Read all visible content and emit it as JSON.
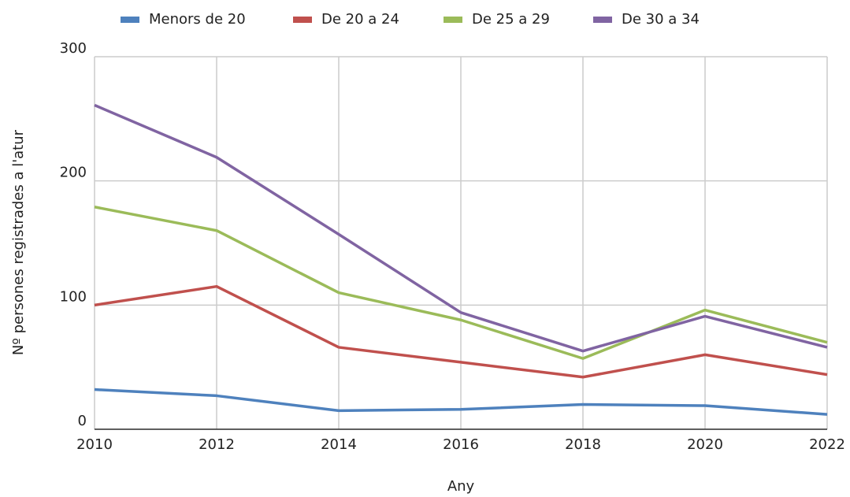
{
  "chart_data": {
    "type": "line",
    "x_label": "Any",
    "y_label": "Nº persones registrades a l'atur",
    "x": [
      2010,
      2012,
      2014,
      2016,
      2018,
      2020,
      2022
    ],
    "series": [
      {
        "name": "Menors de 20",
        "color": "#4e81bd",
        "values": [
          32,
          27,
          15,
          16,
          20,
          19,
          12
        ]
      },
      {
        "name": "De 20 a 24",
        "color": "#c0504d",
        "values": [
          100,
          115,
          66,
          54,
          42,
          60,
          44
        ]
      },
      {
        "name": "De 25 a 29",
        "color": "#9bbb59",
        "values": [
          179,
          160,
          110,
          88,
          57,
          96,
          70
        ]
      },
      {
        "name": "De 30 a 34",
        "color": "#8064a2",
        "values": [
          261,
          219,
          157,
          94,
          63,
          91,
          66
        ]
      }
    ],
    "xlim": [
      2010,
      2022
    ],
    "xticks": [
      2010,
      2012,
      2014,
      2016,
      2018,
      2020,
      2022
    ],
    "ylim": [
      0,
      300
    ],
    "yticks": [
      0,
      100,
      200,
      300
    ],
    "grid": true,
    "legend": "top"
  }
}
